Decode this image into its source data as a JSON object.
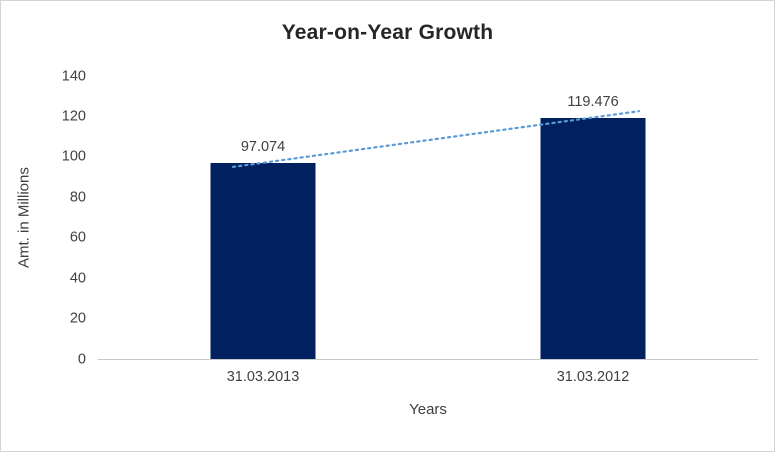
{
  "chart_data": {
    "type": "bar",
    "title": "Year-on-Year Growth",
    "xlabel": "Years",
    "ylabel": "Amt. in Millions",
    "categories": [
      "31.03.2013",
      "31.03.2012"
    ],
    "values": [
      97.074,
      119.476
    ],
    "data_labels": [
      "97.074",
      "119.476"
    ],
    "ylim": [
      0,
      140
    ],
    "yticks": [
      0,
      20,
      40,
      60,
      80,
      100,
      120,
      140
    ],
    "grid": false,
    "legend": "none",
    "bar_color": "#002060",
    "trendline": {
      "type": "linear",
      "style": "dotted",
      "color": "#5b9bd5"
    }
  }
}
